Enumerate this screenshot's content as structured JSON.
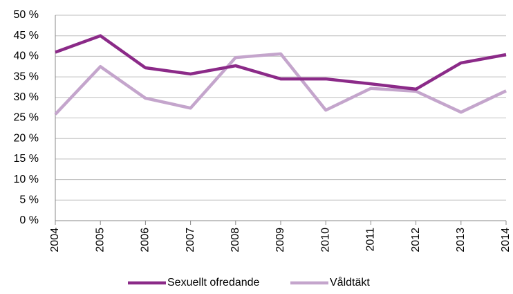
{
  "chart_data": {
    "type": "line",
    "categories": [
      "2004",
      "2005",
      "2006",
      "2007",
      "2008",
      "2009",
      "2010",
      "2011",
      "2012",
      "2013",
      "2014"
    ],
    "series": [
      {
        "name": "Sexuellt ofredande",
        "color": "#8b2a88",
        "values": [
          41,
          45,
          37.2,
          35.7,
          37.7,
          34.5,
          34.5,
          33.3,
          32,
          38.4,
          40.4
        ]
      },
      {
        "name": "Våldtäkt",
        "color": "#c4a5cc",
        "values": [
          25.9,
          37.5,
          29.8,
          27.4,
          39.7,
          40.6,
          26.9,
          32.2,
          31.5,
          26.4,
          31.6
        ]
      }
    ],
    "ylim": [
      0,
      50
    ],
    "yticks": [
      {
        "value": 0,
        "label": "0 %"
      },
      {
        "value": 5,
        "label": "5 %"
      },
      {
        "value": 10,
        "label": "10 %"
      },
      {
        "value": 15,
        "label": "15 %"
      },
      {
        "value": 20,
        "label": "20 %"
      },
      {
        "value": 25,
        "label": "25 %"
      },
      {
        "value": 30,
        "label": "30 %"
      },
      {
        "value": 35,
        "label": "35 %"
      },
      {
        "value": 40,
        "label": "40 %"
      },
      {
        "value": 45,
        "label": "45 %"
      },
      {
        "value": 50,
        "label": "50 %"
      }
    ],
    "grid": true,
    "legend": "bottom"
  }
}
